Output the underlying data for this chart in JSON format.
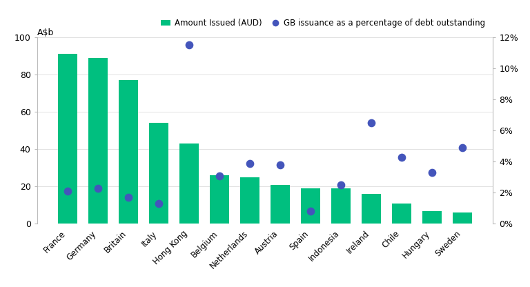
{
  "categories": [
    "France",
    "Germany",
    "Britain",
    "Italy",
    "Hong Kong",
    "Belgium",
    "Netherlands",
    "Austria",
    "Spain",
    "Indonesia",
    "Ireland",
    "Chile",
    "Hungary",
    "Sweden"
  ],
  "bar_values": [
    91,
    89,
    77,
    54,
    43,
    26,
    25,
    21,
    19,
    19,
    16,
    11,
    7,
    6
  ],
  "dot_values_pct": [
    2.1,
    2.3,
    1.7,
    1.3,
    11.5,
    3.1,
    3.9,
    3.8,
    0.8,
    2.5,
    6.5,
    4.3,
    3.3,
    4.9
  ],
  "bar_color": "#00BF7F",
  "dot_color": "#4455BB",
  "ylabel_left": "A$b",
  "ylim_left": [
    0,
    100
  ],
  "ylim_right": [
    0,
    12
  ],
  "yticks_left": [
    0,
    20,
    40,
    60,
    80,
    100
  ],
  "yticks_right_vals": [
    0,
    2,
    4,
    6,
    8,
    10,
    12
  ],
  "yticks_right_labels": [
    "0%",
    "2%",
    "4%",
    "6%",
    "8%",
    "10%",
    "12%"
  ],
  "legend_bar_label": "Amount Issued (AUD)",
  "legend_dot_label": "GB issuance as a percentage of debt outstanding",
  "background_color": "#FFFFFF",
  "dot_size": 55,
  "bar_width": 0.65
}
